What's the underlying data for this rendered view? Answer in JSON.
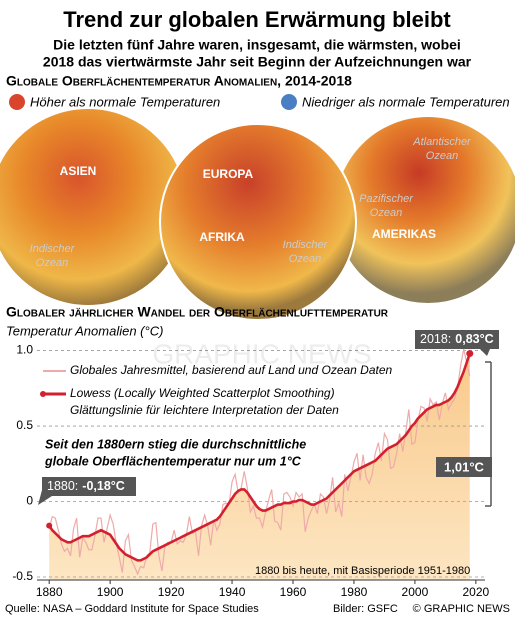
{
  "header": {
    "title": "Trend zur globalen Erwärmung bleibt",
    "subtitle_lines": [
      "Die letzten fünf Jahre waren, insgesamt, die wärmsten, wobei",
      "2018 das viertwärmste Jahr seit Beginn der Aufzeichnungen war"
    ]
  },
  "globes": {
    "heading": "Globale Oberflächentemperatur Anomalien, 2014-2018",
    "legend_high": "Höher als normale Temperaturen",
    "legend_low": "Niedriger als normale Temperaturen",
    "labels": {
      "asien": "ASIEN",
      "europa": "EUROPA",
      "afrika": "AFRIKA",
      "amerikas": "AMERIKAS",
      "indischer_1": [
        "Indischer",
        "Ozean"
      ],
      "indischer_2": [
        "Indischer",
        "Ozean"
      ],
      "atlantischer": [
        "Atlantischer",
        "Ozean"
      ],
      "pazifischer": [
        "Pazifischer",
        "Ozean"
      ]
    }
  },
  "chart_data": {
    "type": "line",
    "title": "Globaler jährlicher Wandel der Oberflächenlufttemperatur",
    "y_label": "Temperatur Anomalien (°C)",
    "grid": true,
    "xlim": [
      1876,
      2023
    ],
    "ylim": [
      -0.52,
      1.07
    ],
    "xticks": [
      1880,
      1900,
      1920,
      1940,
      1960,
      1980,
      2000,
      2020
    ],
    "yticks": [
      -0.5,
      0,
      0.5,
      {
        "value": 1,
        "label": "1.0"
      }
    ],
    "x": [
      1880,
      1881,
      1882,
      1883,
      1884,
      1885,
      1886,
      1887,
      1888,
      1889,
      1890,
      1891,
      1892,
      1893,
      1894,
      1895,
      1896,
      1897,
      1898,
      1899,
      1900,
      1901,
      1902,
      1903,
      1904,
      1905,
      1906,
      1907,
      1908,
      1909,
      1910,
      1911,
      1912,
      1913,
      1914,
      1915,
      1916,
      1917,
      1918,
      1919,
      1920,
      1921,
      1922,
      1923,
      1924,
      1925,
      1926,
      1927,
      1928,
      1929,
      1930,
      1931,
      1932,
      1933,
      1934,
      1935,
      1936,
      1937,
      1938,
      1939,
      1940,
      1941,
      1942,
      1943,
      1944,
      1945,
      1946,
      1947,
      1948,
      1949,
      1950,
      1951,
      1952,
      1953,
      1954,
      1955,
      1956,
      1957,
      1958,
      1959,
      1960,
      1961,
      1962,
      1963,
      1964,
      1965,
      1966,
      1967,
      1968,
      1969,
      1970,
      1971,
      1972,
      1973,
      1974,
      1975,
      1976,
      1977,
      1978,
      1979,
      1980,
      1981,
      1982,
      1983,
      1984,
      1985,
      1986,
      1987,
      1988,
      1989,
      1990,
      1991,
      1992,
      1993,
      1994,
      1995,
      1996,
      1997,
      1998,
      1999,
      2000,
      2001,
      2002,
      2003,
      2004,
      2005,
      2006,
      2007,
      2008,
      2009,
      2010,
      2011,
      2012,
      2013,
      2014,
      2015,
      2016,
      2017,
      2018
    ],
    "series": [
      {
        "name": "Globales Jahresmittel, basierend auf Land und Ozean Daten",
        "color": "#eeaaaa",
        "values": [
          -0.18,
          -0.1,
          -0.11,
          -0.19,
          -0.28,
          -0.33,
          -0.31,
          -0.36,
          -0.18,
          -0.11,
          -0.37,
          -0.24,
          -0.27,
          -0.32,
          -0.32,
          -0.23,
          -0.11,
          -0.11,
          -0.27,
          -0.18,
          -0.09,
          -0.15,
          -0.28,
          -0.37,
          -0.47,
          -0.26,
          -0.22,
          -0.39,
          -0.43,
          -0.48,
          -0.43,
          -0.44,
          -0.36,
          -0.34,
          -0.15,
          -0.14,
          -0.36,
          -0.46,
          -0.29,
          -0.27,
          -0.27,
          -0.19,
          -0.28,
          -0.26,
          -0.27,
          -0.22,
          -0.1,
          -0.21,
          -0.2,
          -0.36,
          -0.16,
          -0.09,
          -0.16,
          -0.29,
          -0.12,
          -0.19,
          -0.15,
          -0.02,
          -0.01,
          -0.02,
          0.13,
          0.18,
          0.06,
          0.09,
          0.2,
          0.09,
          -0.07,
          -0.03,
          -0.11,
          -0.11,
          -0.17,
          -0.07,
          0.01,
          0.08,
          -0.13,
          -0.14,
          -0.19,
          0.05,
          0.06,
          0.03,
          -0.03,
          0.06,
          0.03,
          0.05,
          -0.2,
          -0.11,
          -0.06,
          -0.02,
          -0.08,
          0.05,
          0.03,
          -0.08,
          0.01,
          0.16,
          -0.07,
          -0.01,
          -0.1,
          0.18,
          0.07,
          0.16,
          0.26,
          0.32,
          0.14,
          0.31,
          0.16,
          0.12,
          0.18,
          0.32,
          0.39,
          0.27,
          0.45,
          0.41,
          0.22,
          0.23,
          0.32,
          0.45,
          0.33,
          0.46,
          0.61,
          0.38,
          0.39,
          0.54,
          0.63,
          0.62,
          0.53,
          0.68,
          0.64,
          0.66,
          0.54,
          0.65,
          0.72,
          0.61,
          0.65,
          0.68,
          0.75,
          0.9,
          1.01,
          0.92,
          0.83
        ]
      },
      {
        "name": "Lowess (Locally Weighted Scatterplot Smoothing)",
        "description": "Glättungslinie für leichtere Interpretation der Daten",
        "color": "#d2202f",
        "values": [
          -0.16,
          -0.19,
          -0.21,
          -0.23,
          -0.25,
          -0.26,
          -0.27,
          -0.27,
          -0.26,
          -0.25,
          -0.24,
          -0.23,
          -0.23,
          -0.23,
          -0.22,
          -0.21,
          -0.2,
          -0.19,
          -0.2,
          -0.21,
          -0.22,
          -0.25,
          -0.28,
          -0.31,
          -0.33,
          -0.35,
          -0.36,
          -0.37,
          -0.38,
          -0.39,
          -0.39,
          -0.38,
          -0.37,
          -0.35,
          -0.33,
          -0.32,
          -0.31,
          -0.3,
          -0.29,
          -0.28,
          -0.27,
          -0.26,
          -0.25,
          -0.24,
          -0.23,
          -0.22,
          -0.21,
          -0.2,
          -0.19,
          -0.18,
          -0.17,
          -0.16,
          -0.15,
          -0.14,
          -0.13,
          -0.12,
          -0.1,
          -0.07,
          -0.04,
          -0.01,
          0.02,
          0.05,
          0.07,
          0.08,
          0.08,
          0.06,
          0.03,
          0.0,
          -0.03,
          -0.05,
          -0.06,
          -0.06,
          -0.05,
          -0.04,
          -0.03,
          -0.02,
          -0.02,
          -0.01,
          -0.01,
          -0.01,
          0.0,
          0.0,
          0.01,
          0.01,
          0.0,
          -0.01,
          -0.02,
          -0.02,
          -0.01,
          0.0,
          0.01,
          0.02,
          0.04,
          0.06,
          0.08,
          0.1,
          0.12,
          0.14,
          0.16,
          0.18,
          0.2,
          0.21,
          0.22,
          0.23,
          0.24,
          0.25,
          0.26,
          0.27,
          0.29,
          0.31,
          0.33,
          0.35,
          0.36,
          0.37,
          0.38,
          0.4,
          0.42,
          0.44,
          0.47,
          0.5,
          0.52,
          0.55,
          0.57,
          0.59,
          0.61,
          0.62,
          0.63,
          0.64,
          0.64,
          0.65,
          0.66,
          0.67,
          0.69,
          0.72,
          0.76,
          0.81,
          0.86,
          0.92,
          0.98
        ]
      }
    ],
    "annotations": {
      "callout_2018": [
        "2018:",
        "0,83°C"
      ],
      "callout_1880": [
        "1880:",
        "-0,18°C"
      ],
      "change": "1,01°C",
      "statement": [
        "Seit den 1880ern stieg die durchschnittliche",
        "globale Oberflächentemperatur nur um 1°C"
      ],
      "note": "1880 bis heute, mit Basisperiode 1951-1980",
      "watermark": "GRAPHIC NEWS"
    }
  },
  "footer": {
    "source": "Quelle: NASA – Goddard Institute for Space Studies",
    "images": "Bilder: GSFC",
    "copyright": "© GRAPHIC NEWS"
  }
}
